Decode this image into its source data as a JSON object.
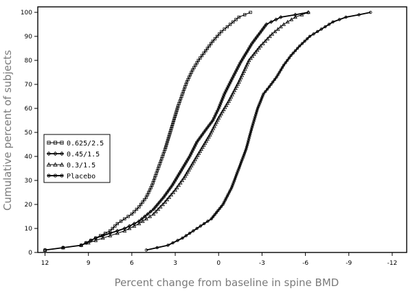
{
  "chart_data": {
    "type": "line",
    "xlabel": "Percent change from baseline in spine BMD",
    "ylabel": "Cumulative percent of subjects",
    "x_ticks": [
      12,
      9,
      6,
      3,
      0,
      -3,
      -6,
      -9,
      -12
    ],
    "x_tick_labels": [
      "12",
      "9",
      "6",
      "3",
      "0",
      "-3",
      "-6",
      "-9",
      "-12"
    ],
    "y_ticks": [
      0,
      10,
      20,
      30,
      40,
      50,
      60,
      70,
      80,
      90,
      100
    ],
    "y_tick_labels": [
      "0",
      "10",
      "20",
      "30",
      "40",
      "50",
      "60",
      "70",
      "80",
      "90",
      "100"
    ],
    "xlim": [
      12.5,
      -13
    ],
    "ylim": [
      0,
      100
    ],
    "x_reversed": true,
    "grid": false,
    "legend_position": "middle-left",
    "series": [
      {
        "name": "0.625/2.5",
        "marker": "square",
        "x": [
          12.0,
          9.5,
          8.5,
          7.5,
          7.0,
          6.5,
          6.0,
          5.5,
          5.0,
          4.6,
          4.3,
          4.0,
          3.7,
          3.4,
          3.1,
          2.8,
          2.5,
          2.2,
          1.8,
          1.4,
          0.9,
          0.4,
          -0.2,
          -0.8,
          -1.4,
          -2.2
        ],
        "y": [
          1,
          3,
          6,
          9,
          12,
          14,
          16,
          19,
          23,
          28,
          33,
          38,
          43,
          49,
          55,
          61,
          66,
          71,
          76,
          80,
          84,
          88,
          92,
          95,
          98,
          100
        ]
      },
      {
        "name": "0.45/1.5",
        "marker": "diamond",
        "x": [
          12.0,
          9.5,
          8.5,
          7.5,
          6.5,
          5.5,
          4.5,
          3.8,
          3.2,
          2.6,
          2.0,
          1.5,
          0.9,
          0.4,
          0.0,
          -0.4,
          -0.9,
          -1.5,
          -2.3,
          -3.3,
          -4.3,
          -5.3,
          -6.2
        ],
        "y": [
          1,
          3,
          6,
          8,
          10,
          13,
          18,
          23,
          28,
          34,
          40,
          46,
          51,
          55,
          60,
          66,
          72,
          79,
          87,
          95,
          98,
          99,
          100
        ]
      },
      {
        "name": "0.3/1.5",
        "marker": "triangle",
        "x": [
          12.0,
          9.5,
          8.0,
          6.5,
          5.5,
          4.5,
          3.7,
          3.0,
          2.4,
          1.8,
          1.2,
          0.6,
          0.0,
          -0.7,
          -1.4,
          -2.1,
          -2.9,
          -3.7,
          -4.5,
          -5.3,
          -6.2
        ],
        "y": [
          1,
          3,
          6,
          9,
          12,
          16,
          21,
          26,
          31,
          37,
          43,
          49,
          56,
          63,
          71,
          80,
          86,
          91,
          95,
          98,
          100
        ]
      },
      {
        "name": "Placebo",
        "marker": "circle",
        "x": [
          5.0,
          3.5,
          2.5,
          1.5,
          0.5,
          -0.3,
          -0.9,
          -1.4,
          -1.9,
          -2.3,
          -2.7,
          -3.1,
          -3.5,
          -4.0,
          -4.5,
          -5.0,
          -5.6,
          -6.3,
          -7.1,
          -7.9,
          -8.8,
          -9.7,
          -10.5
        ],
        "y": [
          1,
          3,
          6,
          10,
          14,
          20,
          27,
          35,
          43,
          52,
          60,
          66,
          69,
          73,
          78,
          82,
          86,
          90,
          93,
          96,
          98,
          99,
          100
        ]
      }
    ]
  }
}
